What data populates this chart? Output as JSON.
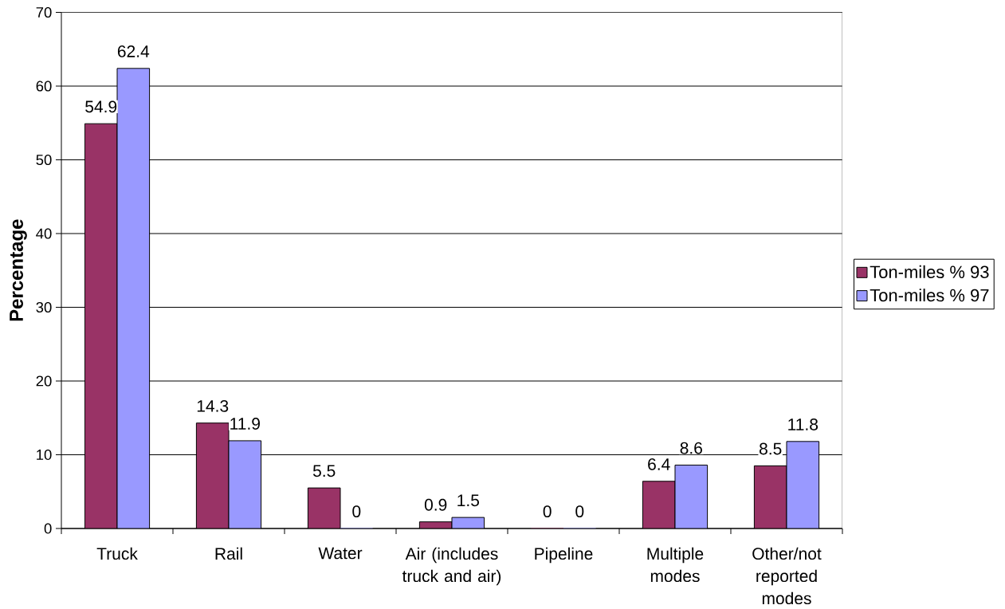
{
  "chart_data": {
    "type": "bar",
    "ylabel": "Percentage",
    "categories": [
      "Truck",
      "Rail",
      "Water",
      "Air (includes truck and air)",
      "Pipeline",
      "Multiple modes",
      "Other/not reported modes"
    ],
    "series": [
      {
        "name": "Ton-miles % 93",
        "color": "#993366",
        "values": [
          54.9,
          14.3,
          5.5,
          0.9,
          0,
          6.4,
          8.5
        ]
      },
      {
        "name": "Ton-miles % 97",
        "color": "#9999ff",
        "values": [
          62.4,
          11.9,
          0,
          1.5,
          0,
          8.6,
          11.8
        ]
      }
    ],
    "ylim": [
      0,
      70
    ],
    "yticks": [
      0,
      10,
      20,
      30,
      40,
      50,
      60,
      70
    ],
    "grid": "y",
    "data_labels": true,
    "legend": "right"
  }
}
